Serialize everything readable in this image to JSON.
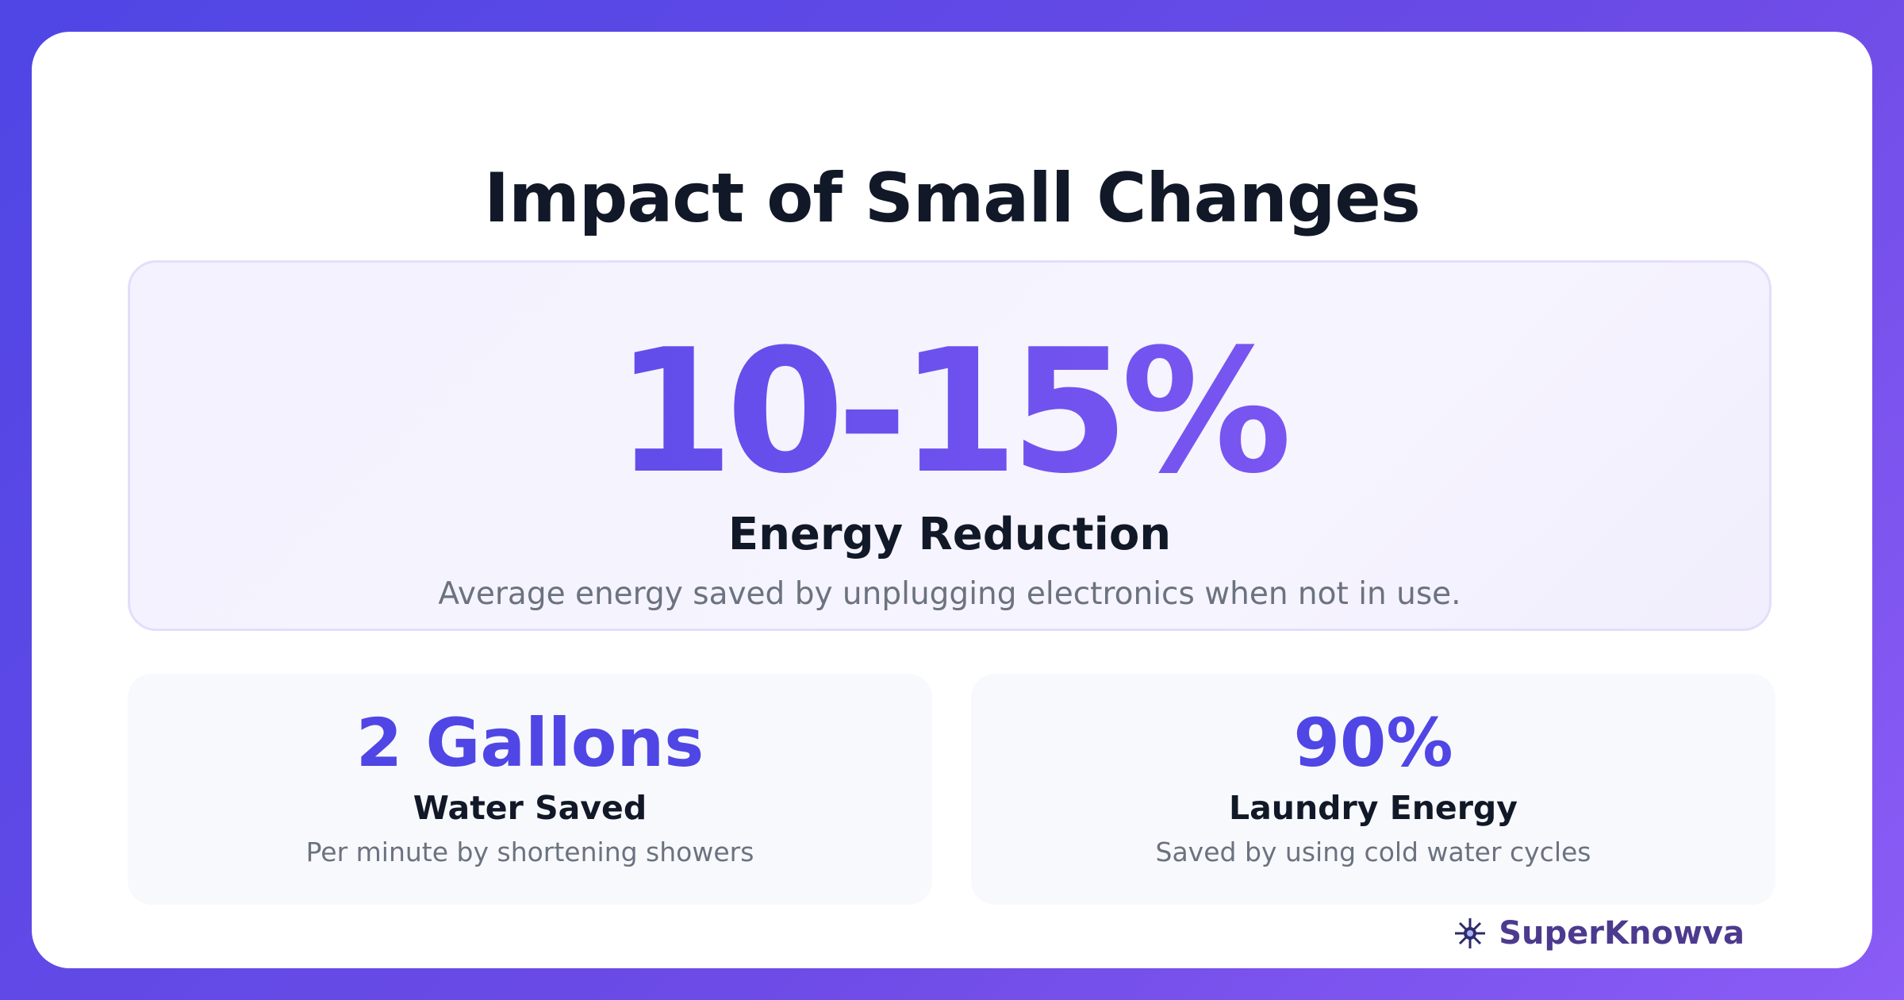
{
  "header": {
    "title": "Impact of Small Changes"
  },
  "hero": {
    "value": "10-15%",
    "label": "Energy Reduction",
    "description": "Average energy saved by unplugging electronics when not in use."
  },
  "stats": [
    {
      "value": "2 Gallons",
      "label": "Water Saved",
      "description": "Per minute by shortening showers"
    },
    {
      "value": "90%",
      "label": "Laundry Energy",
      "description": "Saved by using cold water cycles"
    }
  ],
  "brand": {
    "name": "SuperKnowva"
  }
}
